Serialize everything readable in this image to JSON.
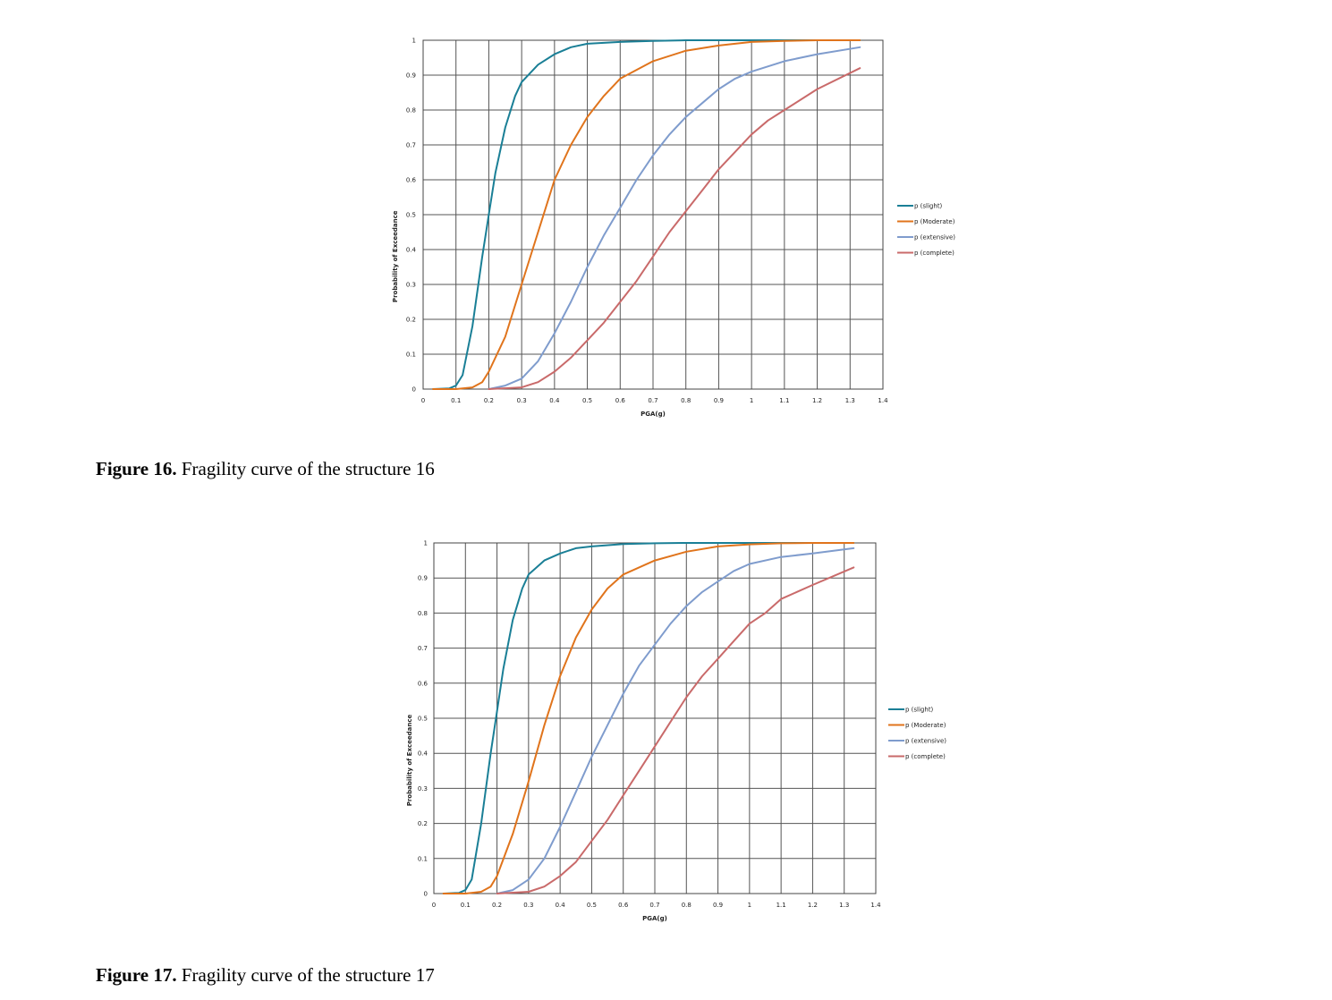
{
  "figures": [
    {
      "caption_label": "Figure 16.",
      "caption_text": "Fragility curve of the structure 16"
    },
    {
      "caption_label": "Figure 17.",
      "caption_text": "Fragility curve of the structure 17"
    }
  ],
  "chart_data": [
    {
      "type": "line",
      "xlabel": "PGA(g)",
      "ylabel": "Probability of Exceedance",
      "xlim": [
        0,
        1.4
      ],
      "ylim": [
        0,
        1
      ],
      "x_ticks": [
        "0",
        "0.1",
        "0.2",
        "0.3",
        "0.4",
        "0.5",
        "0.6",
        "0.7",
        "0.8",
        "0.9",
        "1",
        "1.1",
        "1.2",
        "1.3",
        "1.4"
      ],
      "y_ticks": [
        "0",
        "0.1",
        "0.2",
        "0.3",
        "0.4",
        "0.5",
        "0.6",
        "0.7",
        "0.8",
        "0.9",
        "1"
      ],
      "grid": true,
      "legend_position": "right",
      "series": [
        {
          "name": "p (slight)",
          "color": "#1a7f96",
          "x": [
            0.03,
            0.08,
            0.1,
            0.12,
            0.15,
            0.18,
            0.2,
            0.22,
            0.25,
            0.28,
            0.3,
            0.35,
            0.4,
            0.45,
            0.5,
            0.6,
            0.7,
            0.8,
            0.9,
            1.0,
            1.1,
            1.2,
            1.33
          ],
          "y": [
            0,
            0.002,
            0.01,
            0.04,
            0.18,
            0.38,
            0.5,
            0.62,
            0.75,
            0.84,
            0.88,
            0.93,
            0.96,
            0.98,
            0.99,
            0.995,
            0.998,
            1,
            1,
            1,
            1,
            1,
            1
          ]
        },
        {
          "name": "p (Moderate)",
          "color": "#e0741c",
          "x": [
            0.03,
            0.1,
            0.15,
            0.18,
            0.2,
            0.25,
            0.3,
            0.35,
            0.4,
            0.45,
            0.5,
            0.55,
            0.6,
            0.7,
            0.8,
            0.9,
            1.0,
            1.1,
            1.2,
            1.33
          ],
          "y": [
            0,
            0,
            0.005,
            0.02,
            0.05,
            0.15,
            0.3,
            0.45,
            0.6,
            0.7,
            0.78,
            0.84,
            0.89,
            0.94,
            0.97,
            0.985,
            0.995,
            0.998,
            1,
            1
          ],
          "_": ""
        },
        {
          "name": "p (extensive)",
          "color": "#7f9ccd",
          "x": [
            0.2,
            0.25,
            0.3,
            0.35,
            0.4,
            0.45,
            0.5,
            0.55,
            0.6,
            0.65,
            0.7,
            0.75,
            0.8,
            0.85,
            0.9,
            0.95,
            1.0,
            1.1,
            1.2,
            1.33
          ],
          "y": [
            0,
            0.01,
            0.03,
            0.08,
            0.16,
            0.25,
            0.35,
            0.44,
            0.52,
            0.6,
            0.67,
            0.73,
            0.78,
            0.82,
            0.86,
            0.89,
            0.91,
            0.94,
            0.96,
            0.98
          ]
        },
        {
          "name": "p (complete)",
          "color": "#c96a6a",
          "x": [
            0.2,
            0.3,
            0.35,
            0.4,
            0.45,
            0.5,
            0.55,
            0.6,
            0.65,
            0.7,
            0.75,
            0.8,
            0.85,
            0.9,
            0.95,
            1.0,
            1.05,
            1.1,
            1.2,
            1.33
          ],
          "y": [
            0,
            0.005,
            0.02,
            0.05,
            0.09,
            0.14,
            0.19,
            0.25,
            0.31,
            0.38,
            0.45,
            0.51,
            0.57,
            0.63,
            0.68,
            0.73,
            0.77,
            0.8,
            0.86,
            0.92
          ]
        }
      ]
    },
    {
      "type": "line",
      "xlabel": "PGA(g)",
      "ylabel": "Probability of Exceedance",
      "xlim": [
        0,
        1.4
      ],
      "ylim": [
        0,
        1
      ],
      "x_ticks": [
        "0",
        "0.1",
        "0.2",
        "0.3",
        "0.4",
        "0.5",
        "0.6",
        "0.7",
        "0.8",
        "0.9",
        "1",
        "1.1",
        "1.2",
        "1.3",
        "1.4"
      ],
      "y_ticks": [
        "0",
        "0.1",
        "0.2",
        "0.3",
        "0.4",
        "0.5",
        "0.6",
        "0.7",
        "0.8",
        "0.9",
        "1"
      ],
      "grid": true,
      "legend_position": "right",
      "series": [
        {
          "name": "p (slight)",
          "color": "#1a7f96",
          "x": [
            0.03,
            0.08,
            0.1,
            0.12,
            0.15,
            0.18,
            0.2,
            0.22,
            0.25,
            0.28,
            0.3,
            0.35,
            0.4,
            0.45,
            0.5,
            0.6,
            0.7,
            0.8,
            0.9,
            1.0,
            1.1,
            1.2,
            1.33
          ],
          "y": [
            0,
            0.002,
            0.01,
            0.04,
            0.2,
            0.4,
            0.52,
            0.64,
            0.78,
            0.87,
            0.91,
            0.95,
            0.97,
            0.985,
            0.99,
            0.997,
            0.999,
            1,
            1,
            1,
            1,
            1,
            1
          ]
        },
        {
          "name": "p (Moderate)",
          "color": "#e0741c",
          "x": [
            0.03,
            0.1,
            0.15,
            0.18,
            0.2,
            0.25,
            0.3,
            0.35,
            0.4,
            0.45,
            0.5,
            0.55,
            0.6,
            0.7,
            0.8,
            0.9,
            1.0,
            1.1,
            1.2,
            1.33
          ],
          "y": [
            0,
            0,
            0.005,
            0.02,
            0.05,
            0.17,
            0.32,
            0.48,
            0.62,
            0.73,
            0.81,
            0.87,
            0.91,
            0.95,
            0.975,
            0.99,
            0.996,
            0.999,
            1,
            1
          ]
        },
        {
          "name": "p (extensive)",
          "color": "#7f9ccd",
          "x": [
            0.2,
            0.25,
            0.3,
            0.35,
            0.4,
            0.45,
            0.5,
            0.55,
            0.6,
            0.65,
            0.7,
            0.75,
            0.8,
            0.85,
            0.9,
            0.95,
            1.0,
            1.1,
            1.2,
            1.33
          ],
          "y": [
            0,
            0.01,
            0.04,
            0.1,
            0.19,
            0.29,
            0.39,
            0.48,
            0.57,
            0.65,
            0.71,
            0.77,
            0.82,
            0.86,
            0.89,
            0.92,
            0.94,
            0.96,
            0.97,
            0.985
          ]
        },
        {
          "name": "p (complete)",
          "color": "#c96a6a",
          "x": [
            0.2,
            0.3,
            0.35,
            0.4,
            0.45,
            0.5,
            0.55,
            0.6,
            0.65,
            0.7,
            0.75,
            0.8,
            0.85,
            0.9,
            0.95,
            1.0,
            1.05,
            1.1,
            1.2,
            1.33
          ],
          "y": [
            0,
            0.005,
            0.02,
            0.05,
            0.09,
            0.15,
            0.21,
            0.28,
            0.35,
            0.42,
            0.49,
            0.56,
            0.62,
            0.67,
            0.72,
            0.77,
            0.8,
            0.84,
            0.88,
            0.93
          ]
        }
      ]
    }
  ]
}
